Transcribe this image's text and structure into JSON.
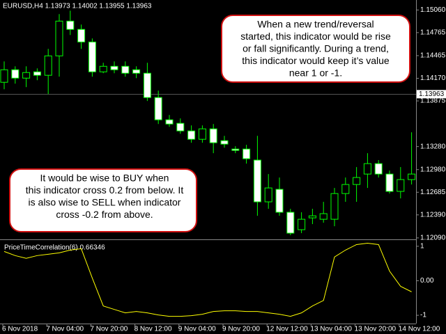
{
  "chart_data": [
    {
      "type": "candlestick",
      "title": "EURUSD,H4  1.13973 1.14002 1.13955 1.13963",
      "open": [
        1.14118,
        1.14281,
        1.14172,
        1.14254,
        1.14209,
        1.14462,
        1.14915,
        1.14807,
        1.14643,
        1.14254,
        1.14326,
        1.14326,
        1.14281,
        1.14236,
        1.13919,
        1.13629,
        1.13583,
        1.13484,
        1.13375,
        1.13511,
        1.13357,
        1.13248,
        1.13248,
        1.13104,
        1.1256,
        1.12723,
        1.12424,
        1.12197,
        1.12351,
        1.12333,
        1.12333,
        1.12668,
        1.12786,
        1.12922,
        1.13058,
        1.12922,
        1.12696,
        1.1285
      ],
      "high": [
        1.1439,
        1.14326,
        1.14326,
        1.14299,
        1.14553,
        1.15006,
        1.15051,
        1.1487,
        1.14689,
        1.14372,
        1.1439,
        1.1439,
        1.14326,
        1.14372,
        1.14009,
        1.13692,
        1.13647,
        1.13556,
        1.13556,
        1.13574,
        1.1342,
        1.13285,
        1.13303,
        1.1342,
        1.12922,
        1.12877,
        1.12469,
        1.12424,
        1.12469,
        1.1256,
        1.12741,
        1.12877,
        1.13013,
        1.13194,
        1.13104,
        1.12967,
        1.13013,
        1.13466
      ],
      "low": [
        1.14027,
        1.141,
        1.14055,
        1.14145,
        1.13964,
        1.14191,
        1.14734,
        1.14553,
        1.14191,
        1.14236,
        1.14236,
        1.14191,
        1.14172,
        1.13874,
        1.13574,
        1.13538,
        1.13447,
        1.1333,
        1.1333,
        1.13194,
        1.13266,
        1.13194,
        1.13058,
        1.12378,
        1.12469,
        1.12378,
        1.12125,
        1.12152,
        1.1227,
        1.12288,
        1.12242,
        1.1256,
        1.1256,
        1.12741,
        1.12877,
        1.12668,
        1.12605,
        1.12786
      ],
      "close": [
        1.14281,
        1.14172,
        1.14245,
        1.14209,
        1.14462,
        1.14915,
        1.14807,
        1.14643,
        1.14254,
        1.14326,
        1.14281,
        1.14236,
        1.14236,
        1.13919,
        1.13629,
        1.13574,
        1.13484,
        1.13375,
        1.13511,
        1.1333,
        1.13312,
        1.1323,
        1.13122,
        1.1256,
        1.12741,
        1.12424,
        1.12152,
        1.12333,
        1.12378,
        1.12406,
        1.12668,
        1.12786,
        1.12877,
        1.13058,
        1.12922,
        1.12696,
        1.1285,
        1.12922
      ],
      "bull_color": "#000000",
      "bear_color": "#ffffff",
      "outline_color": "#00ff00",
      "ylim": [
        1.1208,
        1.1519
      ],
      "yticks": [
        {
          "value": 1.1506,
          "label": "1.15060"
        },
        {
          "value": 1.14765,
          "label": "1.14765"
        },
        {
          "value": 1.14465,
          "label": "1.14465"
        },
        {
          "value": 1.1417,
          "label": "1.14170"
        },
        {
          "value": 1.13875,
          "label": "1.13875"
        },
        {
          "value": 1.1328,
          "label": "1.13280"
        },
        {
          "value": 1.1298,
          "label": "1.12980"
        },
        {
          "value": 1.12685,
          "label": "1.12685"
        },
        {
          "value": 1.1239,
          "label": "1.12390"
        },
        {
          "value": 1.1209,
          "label": "1.12090"
        }
      ],
      "current_price": 1.13963,
      "annotations": [
        {
          "lines": [
            "When a new trend/reversal",
            "started, this indicator would be rise",
            "or fall significantly. During a trend,",
            "this indicator would keep it’s value",
            "near 1 or -1."
          ]
        },
        {
          "lines": [
            "It would be wise to BUY when",
            "this indicator cross 0.2 from below. It",
            "is also wise to SELL when indicator",
            "cross -0.2 from above."
          ]
        }
      ]
    },
    {
      "type": "line",
      "title": "PriceTimeCorrelation(6) 0.66346",
      "categories": [
        "6 Nov 2018",
        null,
        null,
        null,
        "7 Nov 04:00",
        null,
        null,
        null,
        "7 Nov 20:00",
        null,
        null,
        null,
        "8 Nov 12:00",
        null,
        null,
        null,
        "9 Nov 04:00",
        null,
        null,
        null,
        "9 Nov 20:00",
        null,
        null,
        null,
        "12 Nov 12:00",
        null,
        null,
        null,
        "13 Nov 04:00",
        null,
        null,
        null,
        "13 Nov 20:00",
        null,
        null,
        null,
        "14 Nov 12:00",
        null
      ],
      "values": [
        0.85,
        0.73,
        0.65,
        0.73,
        0.77,
        0.81,
        0.89,
        0.93,
        0.08,
        -0.73,
        -0.83,
        -0.93,
        -0.89,
        -0.93,
        -0.99,
        -1.03,
        -1.03,
        -1.01,
        -0.97,
        -0.89,
        -0.87,
        -0.87,
        -0.89,
        -0.89,
        -0.93,
        -0.97,
        -1.03,
        -0.93,
        -0.73,
        -0.57,
        0.69,
        0.89,
        1.05,
        1.09,
        1.05,
        0.28,
        -0.16,
        -0.32
      ],
      "color": "#ffff00",
      "ylim": [
        -1.24,
        1.18
      ],
      "yticks": [
        1,
        {
          "value": 0,
          "label": "0.00"
        },
        -1
      ]
    }
  ]
}
